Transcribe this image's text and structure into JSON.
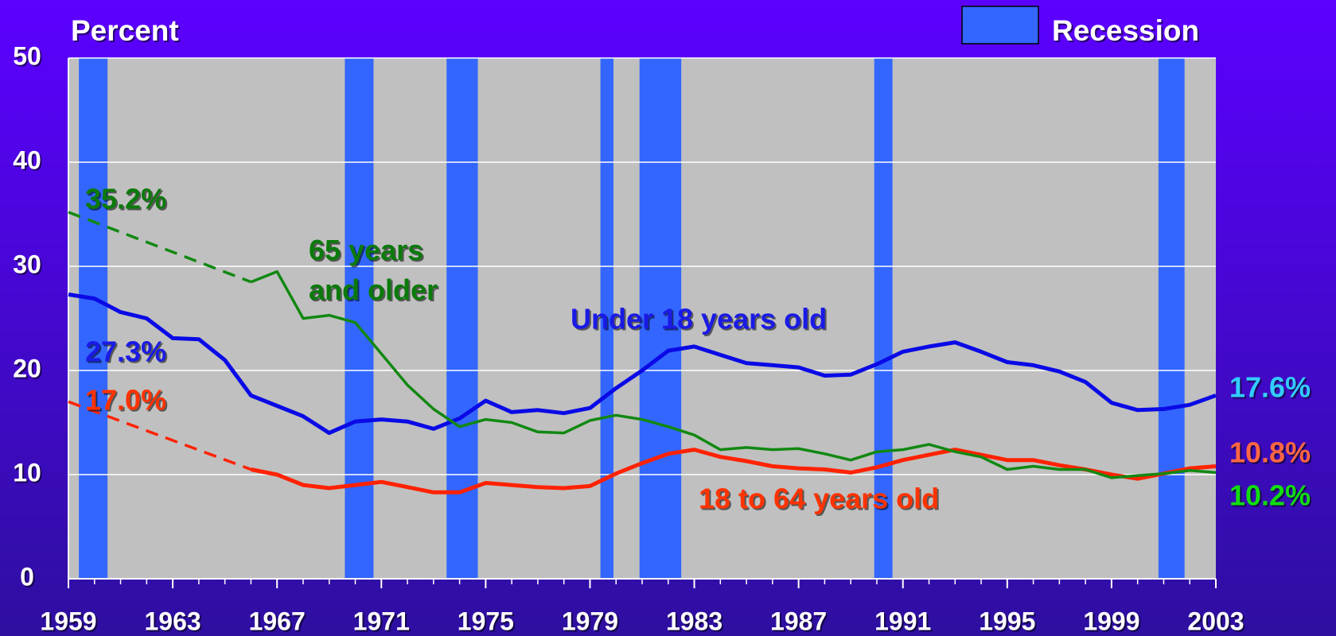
{
  "chart_data": {
    "type": "line",
    "y_axis_label": "Percent",
    "legend_label": "Recession",
    "recession_color": "#3366ff",
    "recessions": [
      [
        1959.4,
        1960.5
      ],
      [
        1969.6,
        1970.7
      ],
      [
        1973.5,
        1974.7
      ],
      [
        1979.4,
        1979.9
      ],
      [
        1980.9,
        1982.5
      ],
      [
        1989.9,
        1990.6
      ],
      [
        2000.8,
        2001.8
      ]
    ],
    "x": [
      1959,
      1960,
      1961,
      1962,
      1963,
      1964,
      1965,
      1966,
      1967,
      1968,
      1969,
      1970,
      1971,
      1972,
      1973,
      1974,
      1975,
      1976,
      1977,
      1978,
      1979,
      1980,
      1981,
      1982,
      1983,
      1984,
      1985,
      1986,
      1987,
      1988,
      1989,
      1990,
      1991,
      1992,
      1993,
      1994,
      1995,
      1996,
      1997,
      1998,
      1999,
      2000,
      2001,
      2002,
      2003
    ],
    "xlim": [
      1959,
      2003
    ],
    "xticks": [
      1959,
      1963,
      1967,
      1971,
      1975,
      1979,
      1983,
      1987,
      1991,
      1995,
      1999,
      2003
    ],
    "ylim": [
      0,
      50
    ],
    "yticks": [
      0,
      10,
      20,
      30,
      40,
      50
    ],
    "grid": true,
    "series": [
      {
        "name": "Under 18 years old",
        "color": "#0a0ae6",
        "label_color": "#1a1ae6",
        "end_label_color": "#33ccff",
        "line_width": 5,
        "values": [
          27.3,
          26.9,
          25.6,
          25.0,
          23.1,
          23.0,
          21.0,
          17.6,
          16.6,
          15.6,
          14.0,
          15.1,
          15.3,
          15.1,
          14.4,
          15.4,
          17.1,
          16.0,
          16.2,
          15.9,
          16.4,
          18.3,
          20.0,
          21.9,
          22.3,
          21.5,
          20.7,
          20.5,
          20.3,
          19.5,
          19.6,
          20.6,
          21.8,
          22.3,
          22.7,
          21.8,
          20.8,
          20.5,
          19.9,
          18.9,
          16.9,
          16.2,
          16.3,
          16.7,
          17.6
        ],
        "value_labels": [
          "27.3%",
          null,
          null,
          null,
          null,
          null,
          null,
          null,
          null,
          null,
          null,
          null,
          null,
          null,
          null,
          null,
          null,
          null,
          null,
          null,
          null,
          null,
          null,
          null,
          null,
          null,
          null,
          null,
          null,
          null,
          null,
          null,
          null,
          null,
          null,
          null,
          null,
          null,
          null,
          null,
          null,
          null,
          null,
          null,
          "17.6%"
        ]
      },
      {
        "name": "18 to 64 years old",
        "color": "#ff2200",
        "label_color": "#ff3300",
        "end_label_color": "#ff6644",
        "line_width": 5,
        "gap_line": "dashed",
        "values": [
          17.0,
          null,
          null,
          null,
          null,
          null,
          null,
          10.5,
          10.0,
          9.0,
          8.7,
          9.0,
          9.3,
          8.8,
          8.3,
          8.3,
          9.2,
          9.0,
          8.8,
          8.7,
          8.9,
          10.1,
          11.1,
          12.0,
          12.4,
          11.7,
          11.3,
          10.8,
          10.6,
          10.5,
          10.2,
          10.7,
          11.4,
          11.9,
          12.4,
          11.9,
          11.4,
          11.4,
          10.9,
          10.5,
          10.0,
          9.6,
          10.1,
          10.6,
          10.8
        ],
        "value_labels": [
          "17.0%",
          null,
          null,
          null,
          null,
          null,
          null,
          null,
          null,
          null,
          null,
          null,
          null,
          null,
          null,
          null,
          null,
          null,
          null,
          null,
          null,
          null,
          null,
          null,
          null,
          null,
          null,
          null,
          null,
          null,
          null,
          null,
          null,
          null,
          null,
          null,
          null,
          null,
          null,
          null,
          null,
          null,
          null,
          null,
          "10.8%"
        ]
      },
      {
        "name": "65 years\nand older",
        "color": "#118811",
        "label_color": "#0a7a0a",
        "end_label_color": "#11dd11",
        "line_width": 3.5,
        "gap_line": "dashed",
        "values": [
          35.2,
          null,
          null,
          null,
          null,
          null,
          null,
          28.5,
          29.5,
          25.0,
          25.3,
          24.6,
          21.6,
          18.6,
          16.3,
          14.6,
          15.3,
          15.0,
          14.1,
          14.0,
          15.2,
          15.7,
          15.3,
          14.6,
          13.8,
          12.4,
          12.6,
          12.4,
          12.5,
          12.0,
          11.4,
          12.2,
          12.4,
          12.9,
          12.2,
          11.7,
          10.5,
          10.8,
          10.5,
          10.5,
          9.7,
          9.9,
          10.1,
          10.4,
          10.2
        ],
        "value_labels": [
          "35.2%",
          null,
          null,
          null,
          null,
          null,
          null,
          null,
          null,
          null,
          null,
          null,
          null,
          null,
          null,
          null,
          null,
          null,
          null,
          null,
          null,
          null,
          null,
          null,
          null,
          null,
          null,
          null,
          null,
          null,
          null,
          null,
          null,
          null,
          null,
          null,
          null,
          null,
          null,
          null,
          null,
          null,
          null,
          null,
          "10.2%"
        ]
      }
    ]
  }
}
